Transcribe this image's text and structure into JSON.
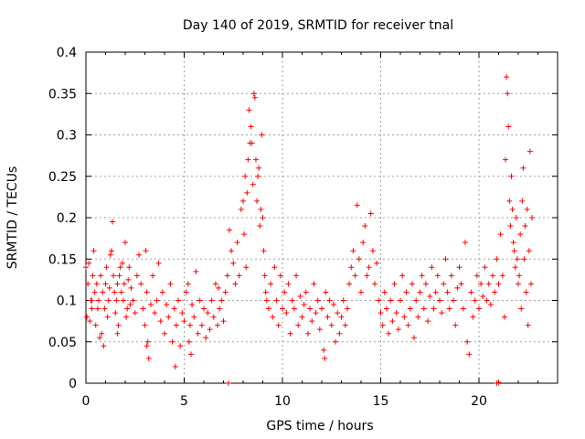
{
  "chart_data": {
    "type": "scatter",
    "title": "Day 140 of 2019, SRMTID for receiver tnal",
    "xlabel": "GPS time / hours",
    "ylabel": "SRMTID / TECUs",
    "xlim": [
      0,
      24
    ],
    "ylim": [
      0,
      0.4
    ],
    "x_ticks": [
      0,
      5,
      10,
      15,
      20
    ],
    "x_tick_labels": [
      "0",
      "5",
      "10",
      "15",
      "20"
    ],
    "y_ticks": [
      0,
      0.05,
      0.1,
      0.15,
      0.2,
      0.25,
      0.3,
      0.35,
      0.4
    ],
    "y_tick_labels": [
      "0",
      "0.05",
      "0.1",
      "0.15",
      "0.2",
      "0.25",
      "0.3",
      "0.35",
      "0.4"
    ],
    "grid": true,
    "marker": "+",
    "color": "#ff0000",
    "series": [
      {
        "name": "SRMTID",
        "points": [
          [
            0.0,
            0.14
          ],
          [
            0.05,
            0.08
          ],
          [
            0.1,
            0.12
          ],
          [
            0.15,
            0.145
          ],
          [
            0.2,
            0.075
          ],
          [
            0.25,
            0.1
          ],
          [
            0.3,
            0.09
          ],
          [
            0.35,
            0.13
          ],
          [
            0.4,
            0.16
          ],
          [
            0.45,
            0.11
          ],
          [
            0.5,
            0.07
          ],
          [
            0.55,
            0.12
          ],
          [
            0.6,
            0.09
          ],
          [
            0.65,
            0.1
          ],
          [
            0.7,
            0.055
          ],
          [
            0.75,
            0.13
          ],
          [
            0.8,
            0.06
          ],
          [
            0.85,
            0.11
          ],
          [
            0.9,
            0.045
          ],
          [
            0.95,
            0.09
          ],
          [
            1.0,
            0.12
          ],
          [
            1.05,
            0.14
          ],
          [
            1.1,
            0.08
          ],
          [
            1.15,
            0.1
          ],
          [
            1.2,
            0.115
          ],
          [
            1.25,
            0.155
          ],
          [
            1.3,
            0.16
          ],
          [
            1.35,
            0.195
          ],
          [
            1.4,
            0.13
          ],
          [
            1.45,
            0.11
          ],
          [
            1.5,
            0.085
          ],
          [
            1.55,
            0.1
          ],
          [
            1.6,
            0.12
          ],
          [
            1.65,
            0.07
          ],
          [
            1.7,
            0.13
          ],
          [
            1.75,
            0.14
          ],
          [
            1.8,
            0.11
          ],
          [
            1.85,
            0.145
          ],
          [
            1.9,
            0.1
          ],
          [
            1.95,
            0.12
          ],
          [
            2.0,
            0.17
          ],
          [
            2.05,
            0.08
          ],
          [
            2.1,
            0.09
          ],
          [
            2.15,
            0.125
          ],
          [
            2.2,
            0.14
          ],
          [
            2.3,
            0.115
          ],
          [
            2.4,
            0.1
          ],
          [
            2.5,
            0.085
          ],
          [
            2.6,
            0.13
          ],
          [
            2.7,
            0.155
          ],
          [
            2.8,
            0.12
          ],
          [
            2.9,
            0.09
          ],
          [
            3.0,
            0.07
          ],
          [
            3.05,
            0.16
          ],
          [
            3.1,
            0.11
          ],
          [
            3.15,
            0.05
          ],
          [
            3.2,
            0.03
          ],
          [
            3.3,
            0.095
          ],
          [
            3.4,
            0.13
          ],
          [
            3.5,
            0.085
          ],
          [
            3.6,
            0.1
          ],
          [
            3.7,
            0.145
          ],
          [
            3.8,
            0.075
          ],
          [
            3.9,
            0.11
          ],
          [
            4.0,
            0.06
          ],
          [
            4.1,
            0.095
          ],
          [
            4.2,
            0.08
          ],
          [
            4.3,
            0.12
          ],
          [
            4.4,
            0.05
          ],
          [
            4.5,
            0.09
          ],
          [
            4.6,
            0.07
          ],
          [
            4.7,
            0.1
          ],
          [
            4.8,
            0.045
          ],
          [
            4.9,
            0.085
          ],
          [
            5.0,
            0.075
          ],
          [
            5.1,
            0.11
          ],
          [
            5.2,
            0.12
          ],
          [
            5.25,
            0.05
          ],
          [
            5.3,
            0.07
          ],
          [
            5.35,
            0.035
          ],
          [
            5.4,
            0.095
          ],
          [
            5.5,
            0.08
          ],
          [
            5.6,
            0.135
          ],
          [
            5.7,
            0.06
          ],
          [
            5.8,
            0.1
          ],
          [
            5.9,
            0.07
          ],
          [
            6.0,
            0.09
          ],
          [
            6.1,
            0.055
          ],
          [
            6.2,
            0.085
          ],
          [
            6.3,
            0.065
          ],
          [
            6.4,
            0.1
          ],
          [
            6.5,
            0.08
          ],
          [
            6.6,
            0.12
          ],
          [
            6.7,
            0.07
          ],
          [
            6.8,
            0.09
          ],
          [
            6.9,
            0.1
          ],
          [
            7.0,
            0.075
          ],
          [
            7.1,
            0.11
          ],
          [
            7.2,
            0.13
          ],
          [
            7.3,
            0.185
          ],
          [
            7.4,
            0.16
          ],
          [
            7.5,
            0.145
          ],
          [
            7.6,
            0.12
          ],
          [
            7.7,
            0.17
          ],
          [
            7.8,
            0.13
          ],
          [
            7.9,
            0.21
          ],
          [
            8.0,
            0.22
          ],
          [
            8.05,
            0.18
          ],
          [
            8.1,
            0.25
          ],
          [
            8.15,
            0.14
          ],
          [
            8.2,
            0.23
          ],
          [
            8.25,
            0.27
          ],
          [
            8.3,
            0.33
          ],
          [
            8.35,
            0.29
          ],
          [
            8.4,
            0.31
          ],
          [
            8.45,
            0.29
          ],
          [
            8.5,
            0.24
          ],
          [
            8.55,
            0.35
          ],
          [
            8.6,
            0.345
          ],
          [
            8.65,
            0.27
          ],
          [
            8.7,
            0.22
          ],
          [
            8.75,
            0.25
          ],
          [
            8.8,
            0.26
          ],
          [
            8.85,
            0.19
          ],
          [
            8.9,
            0.21
          ],
          [
            8.95,
            0.3
          ],
          [
            9.0,
            0.2
          ],
          [
            9.05,
            0.16
          ],
          [
            9.1,
            0.13
          ],
          [
            9.15,
            0.11
          ],
          [
            9.2,
            0.1
          ],
          [
            9.3,
            0.09
          ],
          [
            9.4,
            0.12
          ],
          [
            9.5,
            0.08
          ],
          [
            9.6,
            0.14
          ],
          [
            9.7,
            0.1
          ],
          [
            9.8,
            0.07
          ],
          [
            9.9,
            0.13
          ],
          [
            10.0,
            0.09
          ],
          [
            10.1,
            0.11
          ],
          [
            10.2,
            0.085
          ],
          [
            10.3,
            0.12
          ],
          [
            10.4,
            0.06
          ],
          [
            10.5,
            0.1
          ],
          [
            10.6,
            0.09
          ],
          [
            10.7,
            0.13
          ],
          [
            10.8,
            0.07
          ],
          [
            10.9,
            0.105
          ],
          [
            11.0,
            0.08
          ],
          [
            11.1,
            0.095
          ],
          [
            11.2,
            0.11
          ],
          [
            11.3,
            0.06
          ],
          [
            11.4,
            0.09
          ],
          [
            11.5,
            0.075
          ],
          [
            11.6,
            0.12
          ],
          [
            11.7,
            0.085
          ],
          [
            11.8,
            0.1
          ],
          [
            11.9,
            0.065
          ],
          [
            12.0,
            0.09
          ],
          [
            12.1,
            0.04
          ],
          [
            12.15,
            0.03
          ],
          [
            12.2,
            0.11
          ],
          [
            12.3,
            0.08
          ],
          [
            12.4,
            0.1
          ],
          [
            12.5,
            0.07
          ],
          [
            12.6,
            0.095
          ],
          [
            12.7,
            0.05
          ],
          [
            12.8,
            0.085
          ],
          [
            12.9,
            0.06
          ],
          [
            13.0,
            0.08
          ],
          [
            13.1,
            0.1
          ],
          [
            13.2,
            0.07
          ],
          [
            13.3,
            0.09
          ],
          [
            13.4,
            0.12
          ],
          [
            13.5,
            0.14
          ],
          [
            13.6,
            0.16
          ],
          [
            13.7,
            0.13
          ],
          [
            13.8,
            0.215
          ],
          [
            13.9,
            0.15
          ],
          [
            14.0,
            0.11
          ],
          [
            14.1,
            0.17
          ],
          [
            14.2,
            0.19
          ],
          [
            14.3,
            0.13
          ],
          [
            14.4,
            0.14
          ],
          [
            14.5,
            0.205
          ],
          [
            14.6,
            0.16
          ],
          [
            14.7,
            0.12
          ],
          [
            14.8,
            0.145
          ],
          [
            14.9,
            0.1
          ],
          [
            15.0,
            0.085
          ],
          [
            15.1,
            0.07
          ],
          [
            15.2,
            0.11
          ],
          [
            15.3,
            0.09
          ],
          [
            15.4,
            0.06
          ],
          [
            15.5,
            0.1
          ],
          [
            15.6,
            0.075
          ],
          [
            15.7,
            0.12
          ],
          [
            15.8,
            0.085
          ],
          [
            15.9,
            0.065
          ],
          [
            16.0,
            0.1
          ],
          [
            16.1,
            0.13
          ],
          [
            16.2,
            0.08
          ],
          [
            16.3,
            0.11
          ],
          [
            16.4,
            0.07
          ],
          [
            16.5,
            0.09
          ],
          [
            16.6,
            0.12
          ],
          [
            16.7,
            0.055
          ],
          [
            16.8,
            0.1
          ],
          [
            16.9,
            0.08
          ],
          [
            17.0,
            0.11
          ],
          [
            17.1,
            0.13
          ],
          [
            17.2,
            0.09
          ],
          [
            17.3,
            0.12
          ],
          [
            17.4,
            0.075
          ],
          [
            17.5,
            0.105
          ],
          [
            17.6,
            0.14
          ],
          [
            17.7,
            0.09
          ],
          [
            17.8,
            0.11
          ],
          [
            17.9,
            0.13
          ],
          [
            18.0,
            0.1
          ],
          [
            18.1,
            0.085
          ],
          [
            18.2,
            0.12
          ],
          [
            18.3,
            0.15
          ],
          [
            18.4,
            0.11
          ],
          [
            18.5,
            0.09
          ],
          [
            18.6,
            0.13
          ],
          [
            18.7,
            0.1
          ],
          [
            18.8,
            0.07
          ],
          [
            18.9,
            0.115
          ],
          [
            19.0,
            0.14
          ],
          [
            19.1,
            0.12
          ],
          [
            19.2,
            0.09
          ],
          [
            19.3,
            0.17
          ],
          [
            19.4,
            0.05
          ],
          [
            19.5,
            0.035
          ],
          [
            19.6,
            0.11
          ],
          [
            19.7,
            0.08
          ],
          [
            19.8,
            0.1
          ],
          [
            19.9,
            0.13
          ],
          [
            20.0,
            0.09
          ],
          [
            20.1,
            0.12
          ],
          [
            20.2,
            0.105
          ],
          [
            20.3,
            0.14
          ],
          [
            20.4,
            0.1
          ],
          [
            20.5,
            0.12
          ],
          [
            20.6,
            0.095
          ],
          [
            20.7,
            0.13
          ],
          [
            20.8,
            0.11
          ],
          [
            20.9,
            0.15
          ],
          [
            21.0,
            0.12
          ],
          [
            21.1,
            0.18
          ],
          [
            21.2,
            0.13
          ],
          [
            21.3,
            0.08
          ],
          [
            21.35,
            0.27
          ],
          [
            21.4,
            0.37
          ],
          [
            21.45,
            0.35
          ],
          [
            21.5,
            0.31
          ],
          [
            21.55,
            0.22
          ],
          [
            21.6,
            0.19
          ],
          [
            21.65,
            0.25
          ],
          [
            21.7,
            0.21
          ],
          [
            21.75,
            0.17
          ],
          [
            21.8,
            0.16
          ],
          [
            21.85,
            0.14
          ],
          [
            21.9,
            0.2
          ],
          [
            21.95,
            0.15
          ],
          [
            22.0,
            0.12
          ],
          [
            22.05,
            0.13
          ],
          [
            22.1,
            0.18
          ],
          [
            22.15,
            0.09
          ],
          [
            22.2,
            0.22
          ],
          [
            22.25,
            0.26
          ],
          [
            22.3,
            0.15
          ],
          [
            22.35,
            0.19
          ],
          [
            22.4,
            0.11
          ],
          [
            22.45,
            0.21
          ],
          [
            22.5,
            0.07
          ],
          [
            22.55,
            0.16
          ],
          [
            22.6,
            0.28
          ],
          [
            22.65,
            0.12
          ],
          [
            22.7,
            0.2
          ],
          [
            7.25,
            0.0
          ],
          [
            20.9,
            0.0
          ],
          [
            21.0,
            0.001
          ],
          [
            4.55,
            0.02
          ],
          [
            3.1,
            0.045
          ],
          [
            0.3,
            0.1
          ],
          [
            1.6,
            0.06
          ],
          [
            2.25,
            0.095
          ],
          [
            6.75,
            0.115
          ]
        ]
      }
    ]
  }
}
